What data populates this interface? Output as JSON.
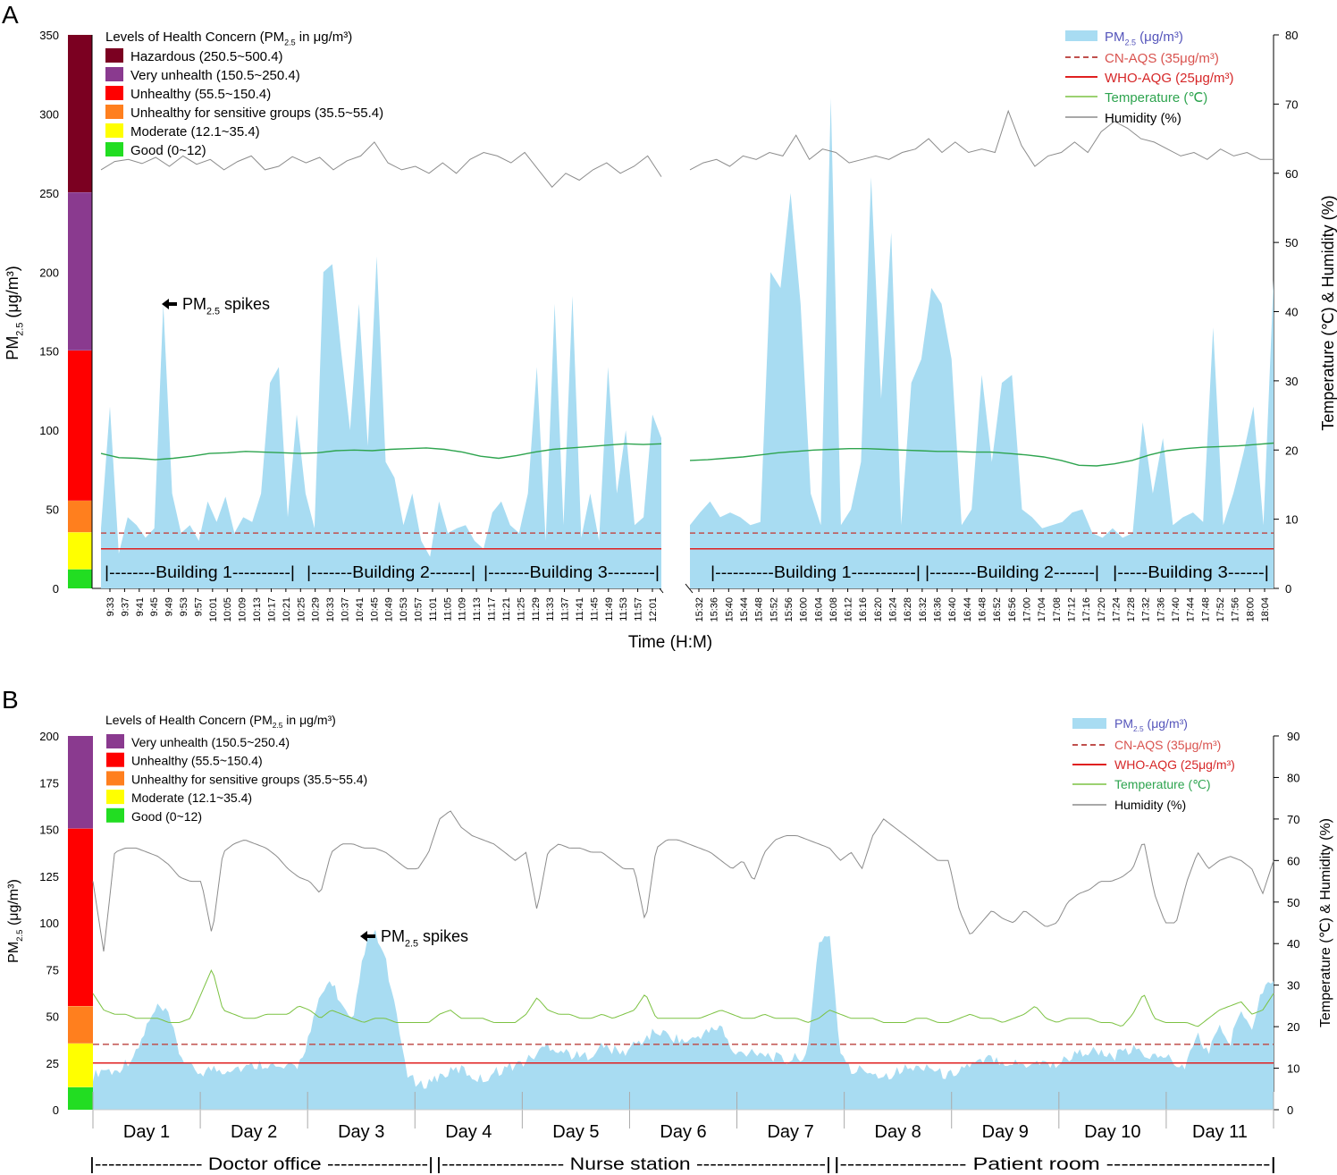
{
  "colors": {
    "pm25": "#a8dcf2",
    "cn_aqs": "#c0504d",
    "who_aqg": "#e02020",
    "temperature": "#2ea44f",
    "temperature_b": "#7cc242",
    "humidity": "#8c8c8c",
    "hazardous": "#7b0021",
    "very_unhealthy": "#8a3a8f",
    "unhealthy": "#ff0000",
    "sensitive": "#ff7f1e",
    "moderate": "#ffff00",
    "good": "#22dd22",
    "legend_pm_text": "#5555bb",
    "legend_cn_text": "#d9534f",
    "legend_who_text": "#d62728",
    "legend_temp_text": "#2ea44f"
  },
  "chart_data": [
    {
      "panel_label": "A",
      "type": "area",
      "y_left_label": "PM2.5 (μg/m³)",
      "y_right_label": "Temperature (℃) & Humidity (%)",
      "xlabel": "Time (H:M)",
      "ylim": [
        0,
        350
      ],
      "y_ticks": [
        0,
        50,
        100,
        150,
        200,
        250,
        300,
        350
      ],
      "y2lim": [
        0,
        80
      ],
      "y2_ticks": [
        0,
        10,
        20,
        30,
        40,
        50,
        60,
        70,
        80
      ],
      "health_title_prefix": "Levels of Health Concern (PM",
      "health_title_sub": "2.5",
      "health_title_suffix": " in μg/m³)",
      "health_levels": [
        {
          "label": "Hazardous (250.5~500.4)",
          "from": 250.5,
          "to": 350,
          "color_key": "hazardous"
        },
        {
          "label": "Very unhealth (150.5~250.4)",
          "from": 150.5,
          "to": 250.4,
          "color_key": "very_unhealthy"
        },
        {
          "label": "Unhealthy (55.5~150.4)",
          "from": 55.5,
          "to": 150.4,
          "color_key": "unhealthy"
        },
        {
          "label": "Unhealthy for sensitive groups (35.5~55.4)",
          "from": 35.5,
          "to": 55.4,
          "color_key": "sensitive"
        },
        {
          "label": "Moderate (12.1~35.4)",
          "from": 12.1,
          "to": 35.4,
          "color_key": "moderate"
        },
        {
          "label": "Good (0~12)",
          "from": 0,
          "to": 12,
          "color_key": "good"
        }
      ],
      "legend": [
        "PM2.5 (μg/m³)",
        "CN-AQS (35μg/m³)",
        "WHO-AQG (25μg/m³)",
        "Temperature (℃)",
        "Humidity (%)"
      ],
      "reference_lines": {
        "cn_aqs": 35,
        "who_aqg": 25
      },
      "annotation": "PM2.5 spikes",
      "morning": {
        "ticks": [
          "9:33",
          "9:37",
          "9:41",
          "9:45",
          "9:49",
          "9:53",
          "9:57",
          "10:01",
          "10:05",
          "10:09",
          "10:13",
          "10:17",
          "10:21",
          "10:25",
          "10:29",
          "10:33",
          "10:37",
          "10:41",
          "10:45",
          "10:49",
          "10:53",
          "10:57",
          "11:01",
          "11:05",
          "11:09",
          "11:13",
          "11:17",
          "11:21",
          "11:25",
          "11:29",
          "11:33",
          "11:37",
          "11:41",
          "11:45",
          "11:49",
          "11:53",
          "11:57",
          "12:01"
        ],
        "pm25": [
          38,
          115,
          22,
          45,
          40,
          32,
          38,
          180,
          60,
          35,
          40,
          30,
          55,
          42,
          58,
          35,
          45,
          42,
          60,
          130,
          140,
          45,
          110,
          60,
          38,
          200,
          205,
          150,
          100,
          180,
          90,
          210,
          80,
          70,
          40,
          60,
          30,
          20,
          55,
          35,
          38,
          40,
          30,
          25,
          48,
          55,
          40,
          35,
          60,
          140,
          30,
          180,
          40,
          185,
          32,
          60,
          30,
          140,
          60,
          100,
          40,
          45,
          110,
          95
        ],
        "temperature": [
          19.5,
          18.9,
          18.8,
          18.6,
          18.8,
          19.1,
          19.5,
          19.6,
          19.8,
          19.7,
          19.6,
          19.5,
          19.6,
          19.9,
          20.0,
          19.9,
          20.1,
          20.2,
          20.3,
          20.1,
          19.7,
          19.1,
          18.8,
          19.2,
          19.7,
          20.1,
          20.3,
          20.5,
          20.7,
          20.9,
          20.8,
          20.9
        ],
        "humidity": [
          60.5,
          61.7,
          62.0,
          61.4,
          62.3,
          61.0,
          62.5,
          61.3,
          62.0,
          60.5,
          61.7,
          62.5,
          60.5,
          61.0,
          62.4,
          61.5,
          62.3,
          60.5,
          61.8,
          62.5,
          64.5,
          61.5,
          60.5,
          61.0,
          60.0,
          61.5,
          60.0,
          62.0,
          63.0,
          62.5,
          61.5,
          63.0,
          60.5,
          58.0,
          60.0,
          59.0,
          60.5,
          61.5,
          60.0,
          61.0,
          62.5,
          59.5
        ]
      },
      "afternoon": {
        "ticks": [
          "15:32",
          "15:36",
          "15:40",
          "15:44",
          "15:48",
          "15:52",
          "15:56",
          "16:00",
          "16:04",
          "16:08",
          "16:12",
          "16:16",
          "16:20",
          "16:24",
          "16:28",
          "16:32",
          "16:36",
          "16:40",
          "16:44",
          "16:48",
          "16:52",
          "16:56",
          "17:00",
          "17:04",
          "17:08",
          "17:12",
          "17:16",
          "17:20",
          "17:24",
          "17:28",
          "17:32",
          "17:36",
          "17:40",
          "17:44",
          "17:48",
          "17:52",
          "17:56",
          "18:00",
          "18:04"
        ],
        "pm25": [
          40,
          48,
          55,
          45,
          48,
          45,
          40,
          42,
          200,
          190,
          250,
          180,
          60,
          40,
          310,
          40,
          50,
          80,
          260,
          120,
          225,
          40,
          130,
          145,
          190,
          180,
          145,
          40,
          50,
          135,
          80,
          130,
          135,
          50,
          45,
          38,
          40,
          42,
          48,
          50,
          35,
          32,
          38,
          32,
          35,
          105,
          60,
          95,
          40,
          45,
          48,
          42,
          165,
          40,
          60,
          85,
          115,
          40,
          195
        ]
      },
      "humidity_afternoon": [
        60.5,
        61.5,
        62.0,
        61.0,
        62.5,
        62.0,
        63.0,
        62.5,
        65.5,
        62.0,
        63.5,
        63.0,
        61.5,
        62.0,
        62.5,
        62.0,
        63.0,
        63.5,
        65.0,
        63.0,
        64.5,
        63.0,
        63.5,
        63.0,
        69.0,
        64.0,
        61.0,
        62.5,
        63.0,
        64.5,
        63.0,
        66.0,
        67.5,
        66.5,
        65.0,
        64.5,
        63.5,
        62.5,
        63.0,
        62.0,
        63.5,
        62.5,
        63.0,
        62.0,
        62.0
      ],
      "temperature_afternoon": [
        18.5,
        18.6,
        18.8,
        19.0,
        19.3,
        19.6,
        19.8,
        20.0,
        20.1,
        20.2,
        20.2,
        20.1,
        20.0,
        19.9,
        19.8,
        19.8,
        19.7,
        19.7,
        19.5,
        19.3,
        19.0,
        18.5,
        17.8,
        17.7,
        18.0,
        18.5,
        19.3,
        19.9,
        20.2,
        20.4,
        20.5,
        20.6,
        20.8,
        21.0
      ],
      "locations_morning": [
        "|--------Building 1----------|",
        "|-------Building 2-------|",
        "|-------Building 3--------|"
      ],
      "locations_afternoon": [
        "|----------Building 1-----------|",
        "|--------Building 2-------|",
        "|-----Building 3------|"
      ]
    },
    {
      "panel_label": "B",
      "type": "area",
      "y_left_label": "PM2.5 (μg/m³)",
      "y_right_label": "Temperature (℃) & Humidity (%)",
      "ylim": [
        0,
        200
      ],
      "y_ticks": [
        0,
        25,
        50,
        75,
        100,
        125,
        150,
        175,
        200
      ],
      "y2lim": [
        0,
        90
      ],
      "y2_ticks": [
        0,
        10,
        20,
        30,
        40,
        50,
        60,
        70,
        80,
        90
      ],
      "health_title_prefix": "Levels of Health Concern (PM",
      "health_title_sub": "2.5",
      "health_title_suffix": " in μg/m³)",
      "health_levels": [
        {
          "label": "Very unhealth (150.5~250.4)",
          "from": 150.5,
          "to": 200,
          "color_key": "very_unhealthy"
        },
        {
          "label": "Unhealthy (55.5~150.4)",
          "from": 55.5,
          "to": 150.4,
          "color_key": "unhealthy"
        },
        {
          "label": "Unhealthy for sensitive groups (35.5~55.4)",
          "from": 35.5,
          "to": 55.4,
          "color_key": "sensitive"
        },
        {
          "label": "Moderate (12.1~35.4)",
          "from": 12.1,
          "to": 35.4,
          "color_key": "moderate"
        },
        {
          "label": "Good (0~12)",
          "from": 0,
          "to": 12,
          "color_key": "good"
        }
      ],
      "legend": [
        "PM2.5 (μg/m³)",
        "CN-AQS (35μg/m³)",
        "WHO-AQG (25μg/m³)",
        "Temperature (℃)",
        "Humidity (%)"
      ],
      "reference_lines": {
        "cn_aqs": 35,
        "who_aqg": 25
      },
      "annotation": "PM2.5 spikes",
      "days": [
        "Day 1",
        "Day 2",
        "Day 3",
        "Day 4",
        "Day 5",
        "Day 6",
        "Day 7",
        "Day 8",
        "Day 9",
        "Day 10",
        "Day 11"
      ],
      "locations": [
        "|---------------- Doctor office ---------------|",
        "|------------------ Nurse station -------------------|",
        "|----------------- Patient room ----------------------|"
      ],
      "pm25_daily": [
        [
          18,
          22,
          20,
          25,
          30,
          45,
          55,
          50,
          30,
          22
        ],
        [
          20,
          22,
          21,
          23,
          22,
          24,
          25,
          22,
          22,
          24
        ],
        [
          40,
          60,
          70,
          55,
          45,
          85,
          95,
          80,
          50,
          20
        ],
        [
          12,
          15,
          18,
          20,
          22,
          18,
          16,
          20,
          22,
          24
        ],
        [
          26,
          30,
          35,
          32,
          30,
          28,
          30,
          34,
          32,
          30
        ],
        [
          35,
          38,
          42,
          40,
          38,
          36,
          40,
          42,
          45,
          30
        ],
        [
          30,
          32,
          30,
          28,
          26,
          28,
          30,
          90,
          95,
          30
        ],
        [
          20,
          22,
          20,
          18,
          20,
          22,
          22,
          24,
          20,
          18
        ],
        [
          22,
          24,
          25,
          28,
          26,
          25,
          24,
          26,
          25,
          24
        ],
        [
          28,
          30,
          32,
          30,
          28,
          30,
          32,
          30,
          28,
          30
        ],
        [
          22,
          25,
          40,
          30,
          45,
          35,
          55,
          45,
          65,
          70
        ]
      ],
      "humidity_daily": [
        [
          55,
          38,
          62,
          63,
          63,
          62,
          61,
          59,
          56,
          55
        ],
        [
          55,
          42,
          62,
          64,
          65,
          64,
          63,
          61,
          58,
          56
        ],
        [
          55,
          52,
          62,
          64,
          64,
          63,
          63,
          62,
          60,
          58
        ],
        [
          58,
          62,
          70,
          72,
          68,
          66,
          65,
          64,
          62,
          60
        ],
        [
          62,
          48,
          62,
          64,
          63,
          63,
          62,
          62,
          60,
          58
        ],
        [
          58,
          45,
          63,
          65,
          65,
          64,
          63,
          62,
          60,
          58
        ],
        [
          60,
          55,
          62,
          65,
          66,
          66,
          65,
          64,
          63,
          60
        ],
        [
          62,
          58,
          66,
          70,
          68,
          66,
          64,
          62,
          60,
          60
        ],
        [
          48,
          42,
          45,
          48,
          46,
          45,
          48,
          46,
          44,
          45
        ],
        [
          50,
          52,
          53,
          55,
          55,
          56,
          58,
          65,
          52,
          45
        ],
        [
          45,
          55,
          62,
          58,
          60,
          61,
          60,
          58,
          52,
          60
        ]
      ],
      "temperature_daily": [
        [
          28,
          24,
          23,
          23,
          22,
          22,
          22,
          21,
          21,
          22
        ],
        [
          28,
          34,
          24,
          23,
          22,
          22,
          23,
          23,
          23,
          25
        ],
        [
          24,
          22,
          24,
          23,
          22,
          21,
          22,
          22,
          21,
          21
        ],
        [
          21,
          21,
          23,
          24,
          22,
          22,
          22,
          21,
          21,
          21
        ],
        [
          23,
          27,
          24,
          23,
          23,
          22,
          22,
          23,
          22,
          23
        ],
        [
          24,
          28,
          22,
          22,
          22,
          22,
          22,
          23,
          24,
          23
        ],
        [
          22,
          22,
          23,
          22,
          22,
          22,
          21,
          22,
          24,
          23
        ],
        [
          22,
          22,
          22,
          21,
          21,
          21,
          22,
          22,
          21,
          21
        ],
        [
          22,
          23,
          22,
          22,
          21,
          22,
          23,
          25,
          22,
          21
        ],
        [
          22,
          22,
          22,
          21,
          21,
          20,
          23,
          28,
          22,
          21
        ],
        [
          21,
          21,
          20,
          22,
          24,
          25,
          26,
          23,
          24,
          28
        ]
      ]
    }
  ]
}
